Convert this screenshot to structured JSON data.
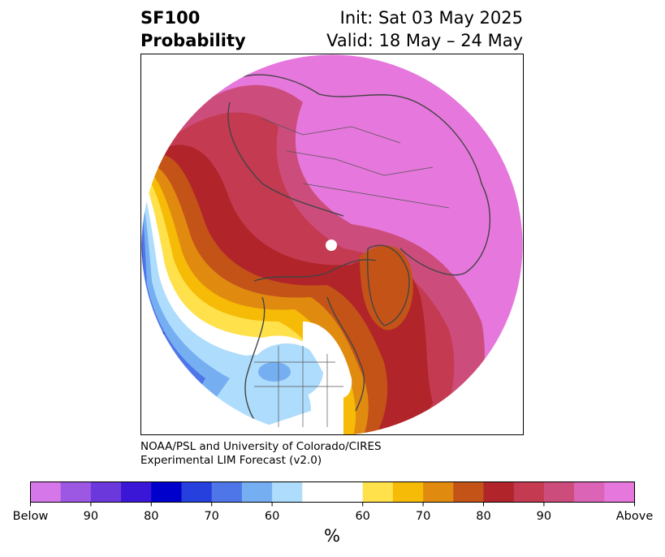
{
  "header": {
    "title_line1": "SF100",
    "title_line2": "Probability",
    "init_text": "Init: Sat 03 May 2025",
    "valid_text": "Valid: 18 May – 24 May"
  },
  "credit": {
    "line1": "NOAA/PSL and University of Colorado/CIRES",
    "line2": "Experimental LIM Forecast (v2.0)"
  },
  "colorbar": {
    "colors": [
      "#d577e9",
      "#9d58e3",
      "#6b38dc",
      "#3a17d6",
      "#0000cd",
      "#2540dc",
      "#4f76e8",
      "#75aff2",
      "#aedcfc",
      "#ffffff",
      "#ffffff",
      "#ffe14b",
      "#f6bb06",
      "#e08b10",
      "#c45318",
      "#b0242a",
      "#c43a50",
      "#cc4d7b",
      "#db64b6",
      "#e677dc"
    ],
    "tick_labels": [
      "Below",
      "90",
      "80",
      "70",
      "60",
      "60",
      "70",
      "80",
      "90",
      "Above"
    ],
    "units": "%"
  },
  "map": {
    "regions": [
      {
        "name": "west-pacific-below-core",
        "color": "#0000cd"
      },
      {
        "name": "northwest-north-america-below",
        "color": "#aedcfc"
      },
      {
        "name": "eastern-us-above",
        "color": "#f6bb06"
      },
      {
        "name": "eurasia-above-core",
        "color": "#e677dc"
      },
      {
        "name": "greenland-above",
        "color": "#c45318"
      }
    ],
    "pole_marker": "north-pole-hole"
  }
}
